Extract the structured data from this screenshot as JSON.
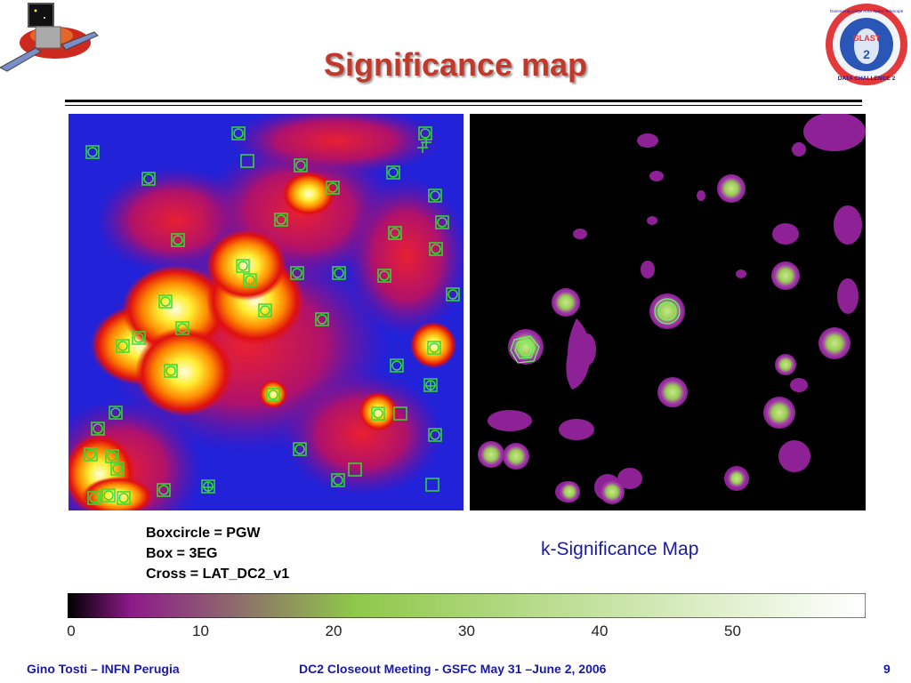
{
  "title": "Significance map",
  "legend": {
    "line1": "Boxcircle = PGW",
    "line2": "Box = 3EG",
    "line3": "Cross = LAT_DC2_v1"
  },
  "kmap_label": "k-Significance Map",
  "colorbar": {
    "ticks": [
      "0",
      "10",
      "20",
      "30",
      "40",
      "50"
    ],
    "colors": [
      "#000000",
      "#8e1a8a",
      "#8fc84a",
      "#ffffff"
    ]
  },
  "logo_right_text": [
    "Gamma-ray Large Area Space Telescope",
    "GLAST",
    "2",
    "DATA CHALLENGE 2"
  ],
  "footer": {
    "left": "Gino Tosti – INFN Perugia",
    "center": "DC2 Closeout Meeting  - GSFC  May 31 –June 2, 2006",
    "page": "9"
  },
  "colors": {
    "title": "#c0392b",
    "footer": "#1a1aa8",
    "marker": "#33dd33"
  },
  "icons": [
    "satellite-logo-icon",
    "glast-dc2-seal-icon"
  ]
}
